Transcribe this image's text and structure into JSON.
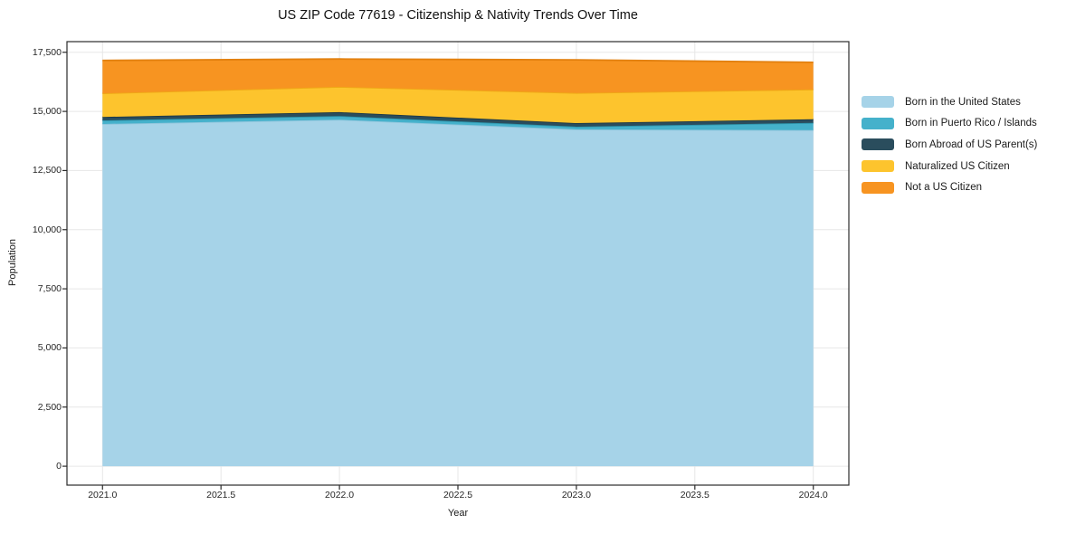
{
  "chart_data": {
    "type": "area",
    "stacked": true,
    "title": "US ZIP Code 77619 - Citizenship & Nativity Trends Over Time",
    "xlabel": "Year",
    "ylabel": "Population",
    "x": [
      2021,
      2022,
      2023,
      2024
    ],
    "series": [
      {
        "name": "Born in the United States",
        "values": [
          14470,
          14650,
          14240,
          14210
        ],
        "color": "#a6d3e8",
        "edge_color": "#8fc5dc"
      },
      {
        "name": "Born in Puerto Rico / Islands",
        "values": [
          150,
          155,
          115,
          305
        ],
        "color": "#45b1cb",
        "edge_color": "#2e97ae"
      },
      {
        "name": "Born Abroad of US Parent(s)",
        "values": [
          145,
          165,
          150,
          155
        ],
        "color": "#2a4d5d",
        "edge_color": "#1d3947"
      },
      {
        "name": "Naturalized US Citizen",
        "values": [
          1000,
          1070,
          1275,
          1260
        ],
        "color": "#fdc42d",
        "edge_color": "#efa816"
      },
      {
        "name": "Not a US Citizen",
        "values": [
          1390,
          1175,
          1400,
          1145
        ],
        "color": "#f79421",
        "edge_color": "#e2800f"
      }
    ],
    "xlim": [
      2020.85,
      2024.15
    ],
    "ylim": [
      -800,
      17950
    ],
    "xticks": {
      "values": [
        2021.0,
        2021.5,
        2022.0,
        2022.5,
        2023.0,
        2023.5,
        2024.0
      ],
      "labels": [
        "2021.0",
        "2021.5",
        "2022.0",
        "2022.5",
        "2023.0",
        "2023.5",
        "2024.0"
      ]
    },
    "yticks": {
      "values": [
        0,
        2500,
        5000,
        7500,
        10000,
        12500,
        15000,
        17500
      ],
      "labels": [
        "0",
        "2,500",
        "5,000",
        "7,500",
        "10,000",
        "12,500",
        "15,000",
        "17,500"
      ]
    },
    "grid": true,
    "legend_position": "right-outside",
    "colors": {
      "grid": "#e7e7e7",
      "frame": "#2b2b2b",
      "background": "#ffffff"
    }
  }
}
